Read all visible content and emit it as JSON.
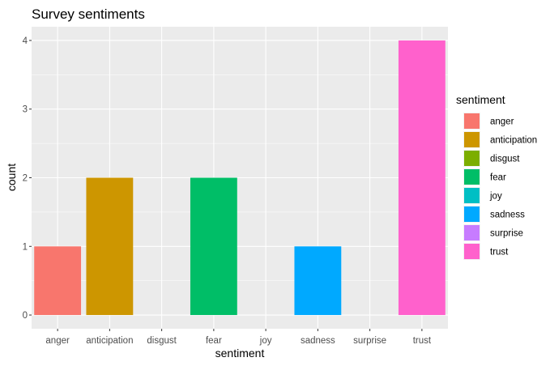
{
  "chart_data": {
    "type": "bar",
    "title": "Survey sentiments",
    "xlabel": "sentiment",
    "ylabel": "count",
    "categories": [
      "anger",
      "anticipation",
      "disgust",
      "fear",
      "joy",
      "sadness",
      "surprise",
      "trust"
    ],
    "values": [
      1,
      2,
      0,
      2,
      0,
      1,
      0,
      4
    ],
    "colors": [
      "#F8766D",
      "#CD9600",
      "#7CAE00",
      "#00BE67",
      "#00BFC4",
      "#00A9FF",
      "#C77CFF",
      "#FF61CC"
    ],
    "yticks": [
      0,
      1,
      2,
      3,
      4
    ],
    "ylim": [
      -0.2,
      4.2
    ],
    "grid": true,
    "panel_background": "#EBEBEB",
    "legend": {
      "title": "sentiment",
      "position": "right",
      "entries": [
        "anger",
        "anticipation",
        "disgust",
        "fear",
        "joy",
        "sadness",
        "surprise",
        "trust"
      ]
    }
  }
}
